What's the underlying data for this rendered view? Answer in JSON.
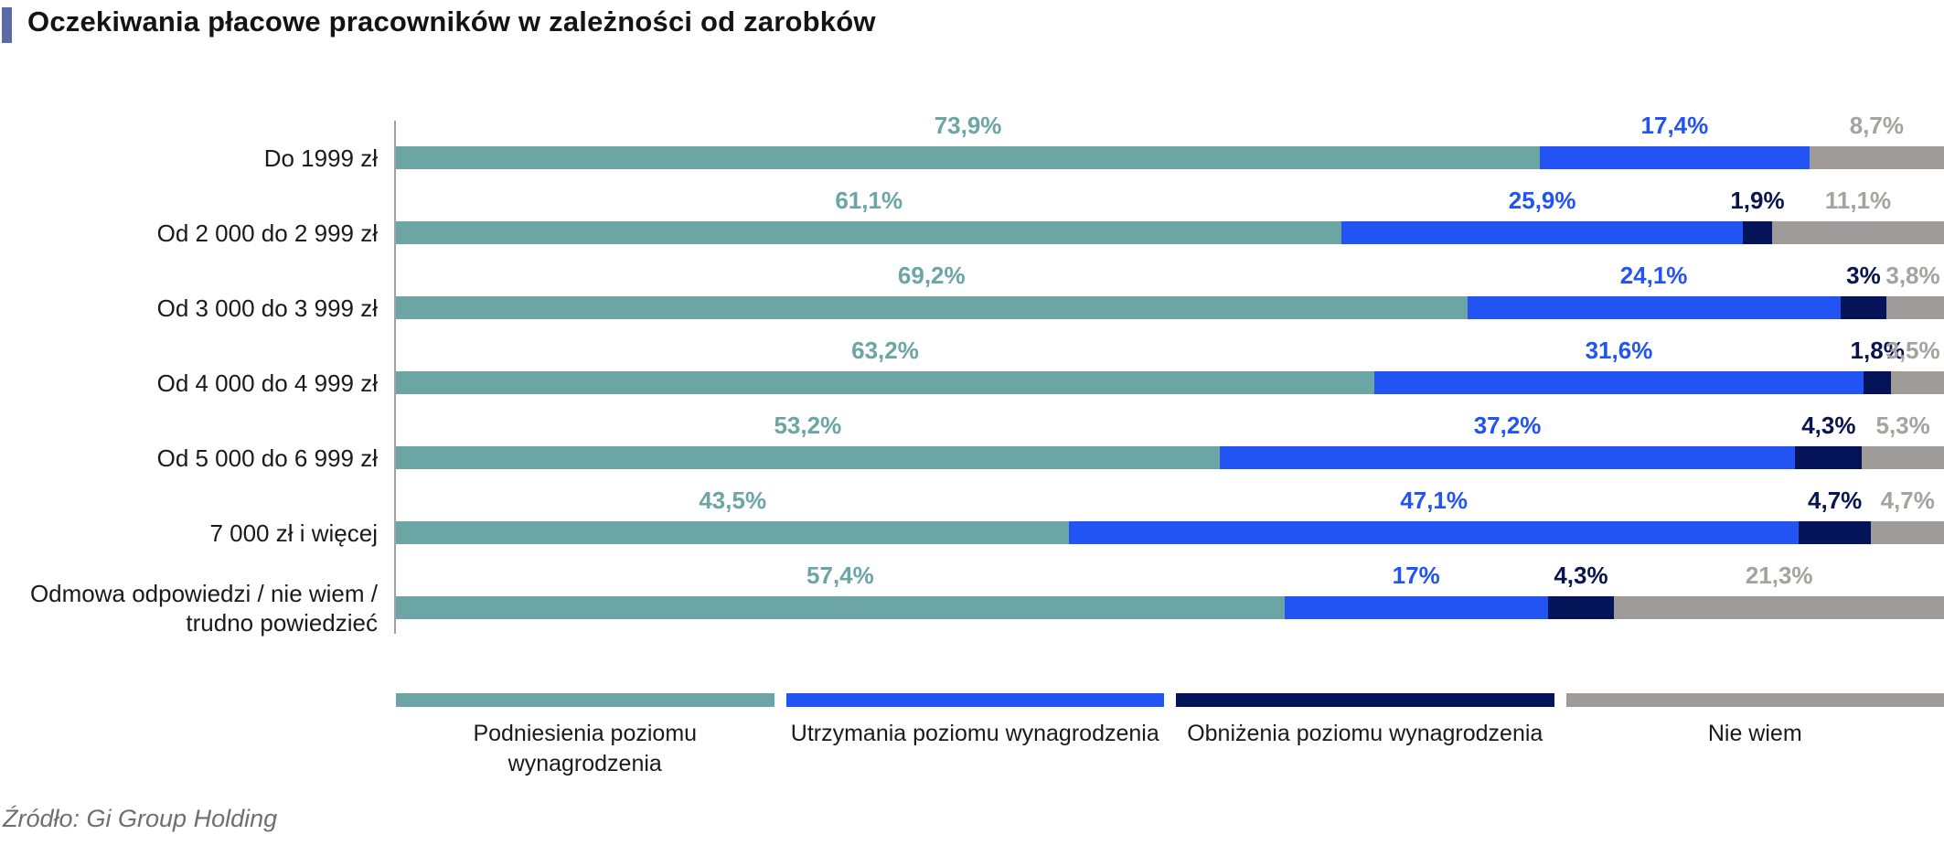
{
  "source": "Źródło: Gi Group Holding",
  "accent_color": "#5B6BA5",
  "colors": {
    "axis": "#A0A0A0",
    "category_text": "#1A1A1A",
    "title_text": "#141414",
    "source_text": "#6F6F6F"
  },
  "chart_data": {
    "type": "bar",
    "variant": "stacked-horizontal",
    "title": "Oczekiwania płacowe pracowników w zależności od zarobków",
    "xlabel": "",
    "ylabel": "",
    "xlim": [
      0,
      100
    ],
    "unit": "%",
    "grid": false,
    "legend_position": "bottom",
    "categories": [
      "Do 1999 zł",
      "Od 2 000 do 2 999 zł",
      "Od 3 000 do 3 999 zł",
      "Od 4 000 do 4 999 zł",
      "Od 5 000 do 6 999 zł",
      "7 000 zł i więcej",
      "Odmowa odpowiedzi / nie wiem / trudno powiedzieć"
    ],
    "series": [
      {
        "name": "Podniesienia poziomu wynagrodzenia",
        "color": "#6BA5A4",
        "label_color": "#6BA5A4",
        "values": [
          73.9,
          61.1,
          69.2,
          63.2,
          53.2,
          43.5,
          57.4
        ]
      },
      {
        "name": "Utrzymania poziomu wynagrodzenia",
        "color": "#2254F4",
        "label_color": "#2254F4",
        "values": [
          17.4,
          25.9,
          24.1,
          31.6,
          37.2,
          47.1,
          17.0
        ]
      },
      {
        "name": "Obniżenia poziomu wynagrodzenia",
        "color": "#051458",
        "label_color": "#0A1550",
        "values": [
          0,
          1.9,
          3.0,
          1.8,
          4.3,
          4.7,
          4.3
        ]
      },
      {
        "name": "Nie wiem",
        "color": "#9E9B98",
        "label_color": "#A5A29F",
        "values": [
          8.7,
          11.1,
          3.8,
          3.5,
          5.3,
          4.7,
          21.3
        ]
      }
    ],
    "value_labels": [
      [
        "73,9%",
        "17,4%",
        null,
        "8,7%"
      ],
      [
        "61,1%",
        "25,9%",
        "1,9%",
        "11,1%"
      ],
      [
        "69,2%",
        "24,1%",
        "3%",
        "3,8%"
      ],
      [
        "63,2%",
        "31,6%",
        "1,8%",
        "3,5%"
      ],
      [
        "53,2%",
        "37,2%",
        "4,3%",
        "5,3%"
      ],
      [
        "43,5%",
        "47,1%",
        "4,7%",
        "4,7%"
      ],
      [
        "57,4%",
        "17%",
        "4,3%",
        "21,3%"
      ]
    ]
  }
}
